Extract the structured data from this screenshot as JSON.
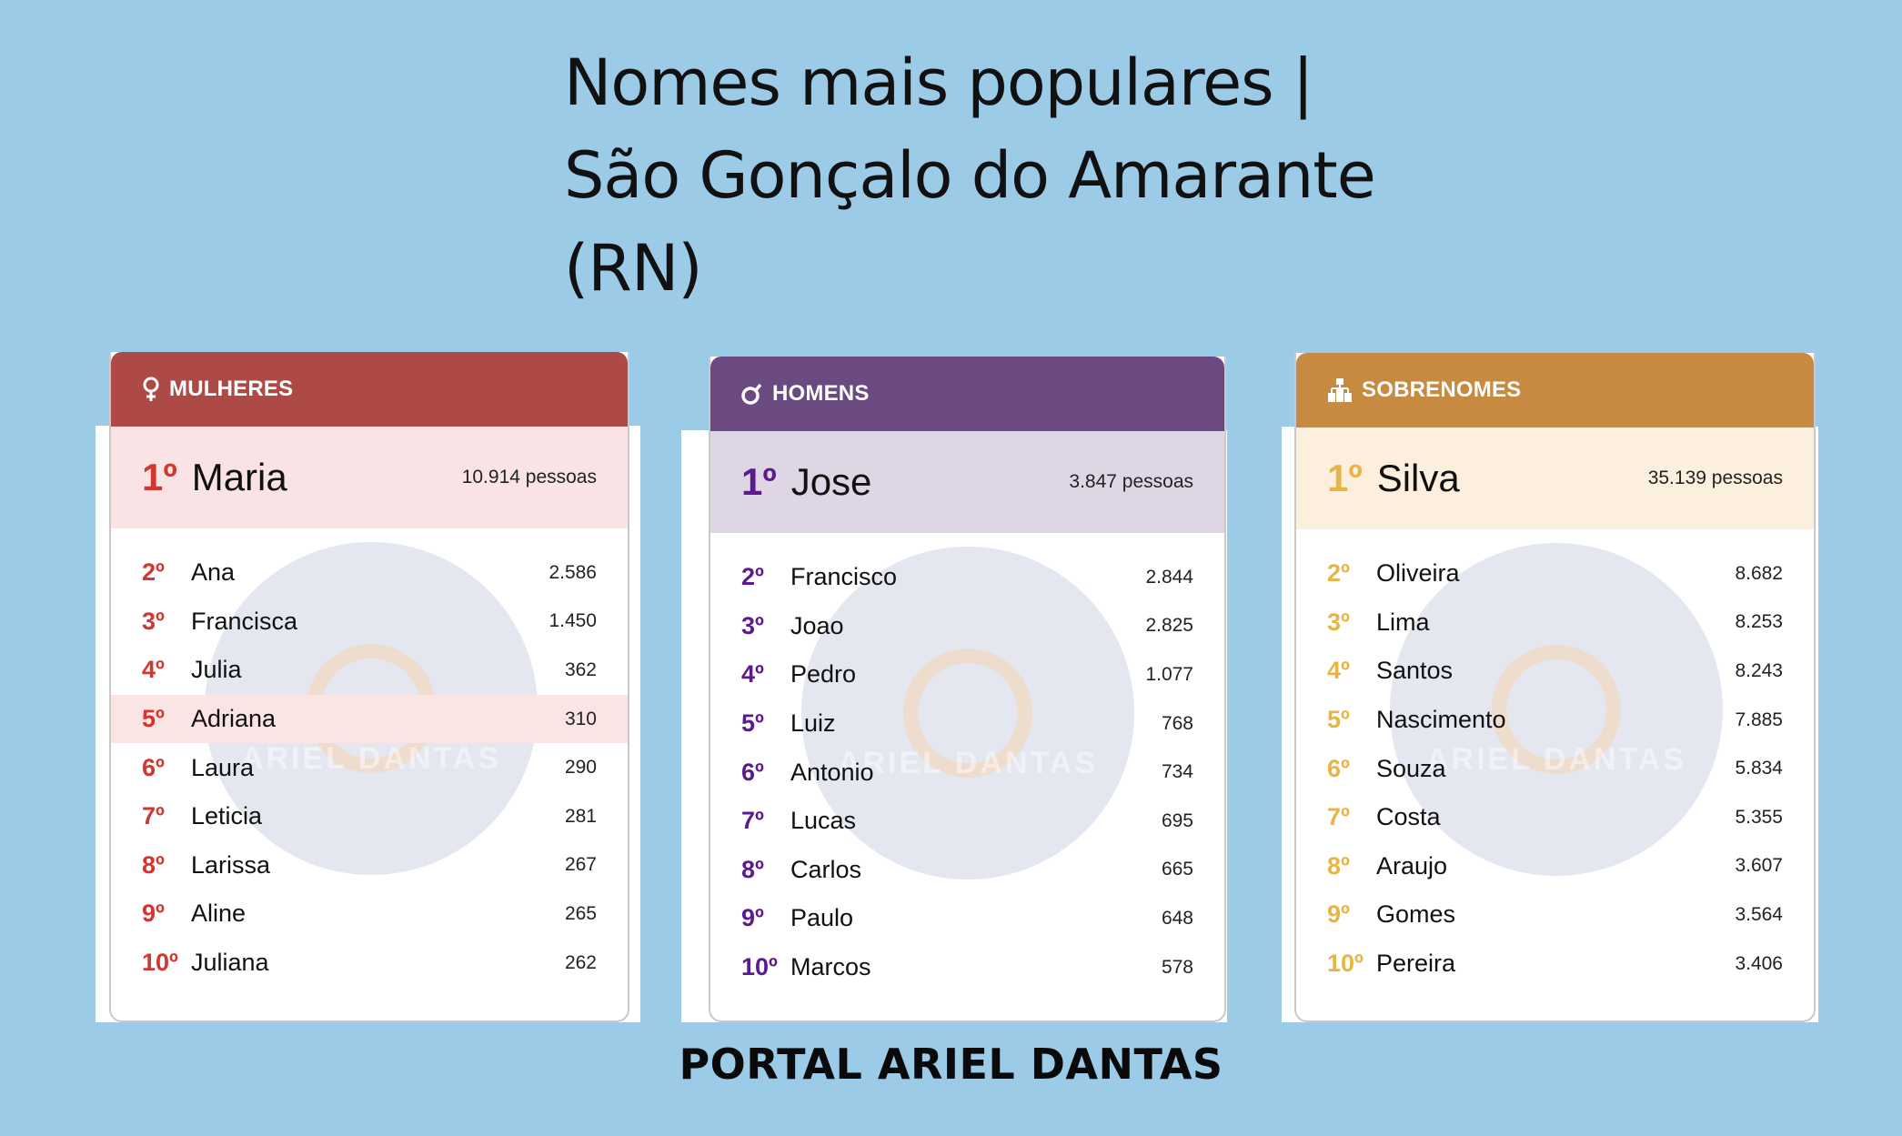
{
  "title": {
    "line1": "Nomes mais populares |",
    "line2": "São Gonçalo do Amarante",
    "line3": "(RN)"
  },
  "colors": {
    "women": "#ae4a45",
    "women_rank": "#d1362f",
    "women_top_bg": "#fae3e5",
    "men": "#6b4a82",
    "men_rank": "#5b1b8f",
    "men_top_bg": "#dfd6e5",
    "surnames": "#c68a40",
    "surnames_rank": "#e8b445",
    "surnames_top_bg": "#fcefde"
  },
  "cards": {
    "women": {
      "header": "MULHERES",
      "icon": "female-icon",
      "top": {
        "rank": "1º",
        "name": "Maria",
        "count": "10.914 pessoas"
      },
      "rows": [
        {
          "rank": "2º",
          "name": "Ana",
          "count": "2.586"
        },
        {
          "rank": "3º",
          "name": "Francisca",
          "count": "1.450"
        },
        {
          "rank": "4º",
          "name": "Julia",
          "count": "362"
        },
        {
          "rank": "5º",
          "name": "Adriana",
          "count": "310"
        },
        {
          "rank": "6º",
          "name": "Laura",
          "count": "290"
        },
        {
          "rank": "7º",
          "name": "Leticia",
          "count": "281"
        },
        {
          "rank": "8º",
          "name": "Larissa",
          "count": "267"
        },
        {
          "rank": "9º",
          "name": "Aline",
          "count": "265"
        },
        {
          "rank": "10º",
          "name": "Juliana",
          "count": "262"
        }
      ]
    },
    "men": {
      "header": "HOMENS",
      "icon": "male-icon",
      "top": {
        "rank": "1º",
        "name": "Jose",
        "count": "3.847 pessoas"
      },
      "rows": [
        {
          "rank": "2º",
          "name": "Francisco",
          "count": "2.844"
        },
        {
          "rank": "3º",
          "name": "Joao",
          "count": "2.825"
        },
        {
          "rank": "4º",
          "name": "Pedro",
          "count": "1.077"
        },
        {
          "rank": "5º",
          "name": "Luiz",
          "count": "768"
        },
        {
          "rank": "6º",
          "name": "Antonio",
          "count": "734"
        },
        {
          "rank": "7º",
          "name": "Lucas",
          "count": "695"
        },
        {
          "rank": "8º",
          "name": "Carlos",
          "count": "665"
        },
        {
          "rank": "9º",
          "name": "Paulo",
          "count": "648"
        },
        {
          "rank": "10º",
          "name": "Marcos",
          "count": "578"
        }
      ]
    },
    "surnames": {
      "header": "SOBRENOMES",
      "icon": "family-tree-icon",
      "top": {
        "rank": "1º",
        "name": "Silva",
        "count": "35.139 pessoas"
      },
      "rows": [
        {
          "rank": "2º",
          "name": "Oliveira",
          "count": "8.682"
        },
        {
          "rank": "3º",
          "name": "Lima",
          "count": "8.253"
        },
        {
          "rank": "4º",
          "name": "Santos",
          "count": "8.243"
        },
        {
          "rank": "5º",
          "name": "Nascimento",
          "count": "7.885"
        },
        {
          "rank": "6º",
          "name": "Souza",
          "count": "5.834"
        },
        {
          "rank": "7º",
          "name": "Costa",
          "count": "5.355"
        },
        {
          "rank": "8º",
          "name": "Araujo",
          "count": "3.607"
        },
        {
          "rank": "9º",
          "name": "Gomes",
          "count": "3.564"
        },
        {
          "rank": "10º",
          "name": "Pereira",
          "count": "3.406"
        }
      ]
    }
  },
  "watermark": {
    "text": "ARIEL DANTAS"
  },
  "footer": "PORTAL ARIEL DANTAS"
}
